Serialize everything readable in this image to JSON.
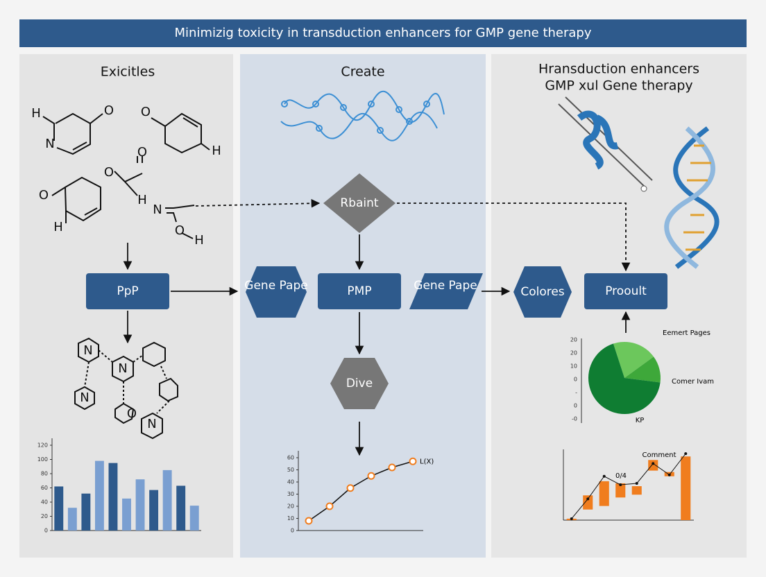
{
  "header": {
    "title": "Minimizig toxicity in transduction enhancers for GMP gene therapy"
  },
  "panels": [
    {
      "title": "Exicitles"
    },
    {
      "title": "Create"
    },
    {
      "title_lines": [
        "Hransduction enhancers",
        "GMP xul Gene therapy"
      ]
    }
  ],
  "atom_labels": [
    "H",
    "N",
    "O",
    "O",
    "H",
    "O",
    "O",
    "H",
    "O",
    "H",
    "N",
    "O",
    "H",
    "N",
    "N",
    "N",
    "O",
    "N"
  ],
  "nodes": [
    {
      "label": "PpP"
    },
    {
      "label": "Gene Pape"
    },
    {
      "label": "PMP"
    },
    {
      "label": "Gene Pape"
    },
    {
      "label": "Colores"
    },
    {
      "label": "Prooult"
    },
    {
      "label": "Rbaint"
    },
    {
      "label": "Dive"
    }
  ],
  "bar_chart": {
    "type": "bar",
    "categories": [
      null,
      null,
      null,
      null,
      null,
      null,
      null,
      null,
      null,
      null,
      null
    ],
    "values": [
      62,
      32,
      52,
      98,
      95,
      45,
      72,
      57,
      85,
      63,
      35
    ],
    "colors": [
      "#2e5a8c",
      "#7a9fd1",
      "#2e5a8c",
      "#7a9fd1",
      "#2e5a8c",
      "#7a9fd1",
      "#7a9fd1",
      "#2e5a8c",
      "#7a9fd1",
      "#2e5a8c",
      "#7a9fd1"
    ],
    "ylim": [
      0,
      120
    ],
    "yticks": [
      0,
      20,
      40,
      60,
      80,
      100,
      120
    ]
  },
  "line_chart": {
    "type": "line",
    "categories": [
      null,
      null,
      null,
      null,
      null,
      null
    ],
    "values": [
      8,
      20,
      35,
      45,
      52,
      57
    ],
    "color": "#f07d1e",
    "series_label": "L(X)",
    "ylim": [
      0,
      60
    ],
    "yticks": [
      0,
      10,
      20,
      30,
      40,
      50,
      60
    ]
  },
  "pie_chart": {
    "type": "pie",
    "values": [
      20,
      12,
      68
    ],
    "colors": [
      "#6cc75c",
      "#3ea83a",
      "#0f7d32"
    ],
    "labels": [
      "Eemert Pages",
      "Comer Ivam",
      "KP"
    ],
    "axis_labels": [
      "20",
      "20",
      "10",
      "0",
      "-",
      "0",
      "-0"
    ]
  },
  "waterfall_chart": {
    "type": "waterfall",
    "ranges": [
      [
        0,
        2
      ],
      [
        15,
        35
      ],
      [
        20,
        55
      ],
      [
        32,
        52
      ],
      [
        36,
        48
      ],
      [
        70,
        85
      ],
      [
        62,
        68
      ],
      [
        0,
        90
      ]
    ],
    "line_values": [
      2,
      30,
      62,
      50,
      52,
      80,
      64,
      94
    ],
    "color": "#f07d1e",
    "ylim": [
      0,
      100
    ],
    "annotations": [
      "Comment",
      "0/4"
    ]
  }
}
